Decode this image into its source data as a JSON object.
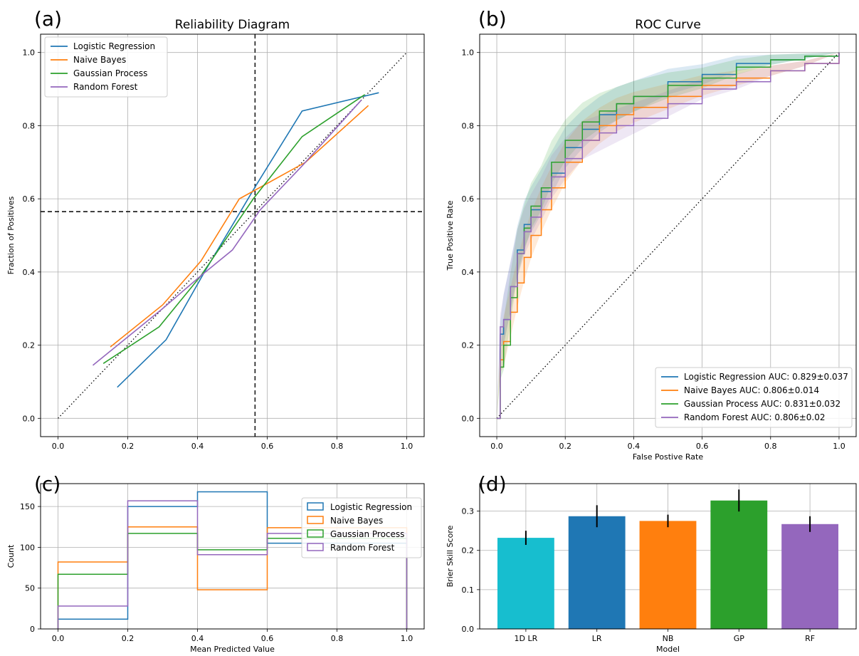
{
  "chart_data": [
    {
      "panel": "(a)",
      "type": "line",
      "title": "Reliability Diagram",
      "xlabel": "",
      "ylabel": "Fraction of Positives",
      "xlim": [
        -0.05,
        1.05
      ],
      "ylim": [
        -0.05,
        1.05
      ],
      "xticks": [
        "0.0",
        "0.2",
        "0.4",
        "0.6",
        "0.8",
        "1.0"
      ],
      "yticks": [
        "0.0",
        "0.2",
        "0.4",
        "0.6",
        "0.8",
        "1.0"
      ],
      "grid": true,
      "legend_position": "top-left",
      "reference_line": {
        "style": "dotted",
        "points": [
          [
            0,
            0
          ],
          [
            1,
            1
          ]
        ]
      },
      "threshold_lines": {
        "style": "dashed",
        "x": 0.565,
        "y": 0.565
      },
      "series": [
        {
          "name": "Logistic Regression",
          "color": "#1f77b4",
          "x": [
            0.17,
            0.31,
            0.42,
            0.57,
            0.7,
            0.92
          ],
          "y": [
            0.085,
            0.215,
            0.4,
            0.64,
            0.84,
            0.89
          ]
        },
        {
          "name": "Naive Bayes",
          "color": "#ff7f0e",
          "x": [
            0.15,
            0.3,
            0.41,
            0.52,
            0.71,
            0.89
          ],
          "y": [
            0.195,
            0.31,
            0.43,
            0.6,
            0.7,
            0.855
          ]
        },
        {
          "name": "Gaussian Process",
          "color": "#2ca02c",
          "x": [
            0.13,
            0.29,
            0.41,
            0.56,
            0.7,
            0.88
          ],
          "y": [
            0.15,
            0.25,
            0.39,
            0.6,
            0.77,
            0.885
          ]
        },
        {
          "name": "Random Forest",
          "color": "#9467bd",
          "x": [
            0.1,
            0.3,
            0.41,
            0.5,
            0.58,
            0.7,
            0.87
          ],
          "y": [
            0.145,
            0.3,
            0.39,
            0.46,
            0.57,
            0.69,
            0.87
          ]
        }
      ]
    },
    {
      "panel": "(b)",
      "type": "line",
      "title": "ROC Curve",
      "xlabel": "False Postive Rate",
      "ylabel": "True Positive Rate",
      "xlim": [
        -0.05,
        1.05
      ],
      "ylim": [
        -0.05,
        1.05
      ],
      "xticks": [
        "0.0",
        "0.2",
        "0.4",
        "0.6",
        "0.8",
        "1.0"
      ],
      "yticks": [
        "0.0",
        "0.2",
        "0.4",
        "0.6",
        "0.8",
        "1.0"
      ],
      "grid": true,
      "legend_position": "bottom-right",
      "reference_line": {
        "style": "dotted",
        "points": [
          [
            0,
            0
          ],
          [
            1,
            1
          ]
        ]
      },
      "series": [
        {
          "name": "Logistic Regression AUC: 0.829±0.037",
          "color": "#1f77b4",
          "x": [
            0,
            0.01,
            0.02,
            0.04,
            0.06,
            0.08,
            0.1,
            0.13,
            0.16,
            0.2,
            0.25,
            0.3,
            0.35,
            0.4,
            0.5,
            0.6,
            0.7,
            0.8,
            0.9,
            1.0
          ],
          "y": [
            0,
            0.23,
            0.27,
            0.36,
            0.46,
            0.53,
            0.57,
            0.62,
            0.67,
            0.74,
            0.79,
            0.83,
            0.86,
            0.88,
            0.92,
            0.94,
            0.97,
            0.98,
            0.99,
            1.0
          ]
        },
        {
          "name": "Naive Bayes AUC: 0.806±0.014",
          "color": "#ff7f0e",
          "x": [
            0,
            0.01,
            0.02,
            0.04,
            0.06,
            0.08,
            0.1,
            0.13,
            0.16,
            0.2,
            0.25,
            0.3,
            0.35,
            0.4,
            0.5,
            0.6,
            0.7,
            0.8,
            0.9,
            1.0
          ],
          "y": [
            0,
            0.16,
            0.21,
            0.29,
            0.37,
            0.44,
            0.5,
            0.57,
            0.63,
            0.7,
            0.76,
            0.8,
            0.83,
            0.85,
            0.88,
            0.91,
            0.93,
            0.95,
            0.97,
            1.0
          ]
        },
        {
          "name": "Gaussian Process AUC: 0.831±0.032",
          "color": "#2ca02c",
          "x": [
            0,
            0.01,
            0.02,
            0.04,
            0.06,
            0.08,
            0.1,
            0.13,
            0.16,
            0.2,
            0.25,
            0.3,
            0.35,
            0.4,
            0.5,
            0.6,
            0.7,
            0.8,
            0.9,
            1.0
          ],
          "y": [
            0,
            0.14,
            0.2,
            0.33,
            0.45,
            0.52,
            0.58,
            0.63,
            0.7,
            0.76,
            0.81,
            0.84,
            0.86,
            0.88,
            0.91,
            0.93,
            0.96,
            0.98,
            0.99,
            1.0
          ]
        },
        {
          "name": "Random Forest AUC: 0.806±0.02",
          "color": "#9467bd",
          "x": [
            0,
            0.01,
            0.02,
            0.04,
            0.06,
            0.08,
            0.1,
            0.13,
            0.16,
            0.2,
            0.25,
            0.3,
            0.35,
            0.4,
            0.5,
            0.6,
            0.7,
            0.8,
            0.9,
            1.0
          ],
          "y": [
            0,
            0.25,
            0.27,
            0.36,
            0.45,
            0.51,
            0.55,
            0.6,
            0.66,
            0.71,
            0.76,
            0.78,
            0.8,
            0.82,
            0.86,
            0.9,
            0.92,
            0.95,
            0.97,
            1.0
          ]
        }
      ]
    },
    {
      "panel": "(c)",
      "type": "bar",
      "subtype": "step-histogram",
      "title": "",
      "xlabel": "Mean Predicted Value",
      "ylabel": "Count",
      "xlim": [
        -0.05,
        1.05
      ],
      "ylim": [
        0,
        178
      ],
      "bin_edges": [
        0.0,
        0.2,
        0.4,
        0.6,
        0.8,
        1.0
      ],
      "xticks": [
        "0.0",
        "0.2",
        "0.4",
        "0.6",
        "0.8",
        "1.0"
      ],
      "yticks": [
        "0",
        "50",
        "100",
        "150"
      ],
      "ytick_values": [
        0,
        50,
        100,
        150
      ],
      "grid": true,
      "legend_position": "top-right",
      "series": [
        {
          "name": "Logistic Regression",
          "color": "#1f77b4",
          "values": [
            12,
            150,
            168,
            105,
            105
          ]
        },
        {
          "name": "Naive Bayes",
          "color": "#ff7f0e",
          "values": [
            82,
            125,
            48,
            124,
            124
          ]
        },
        {
          "name": "Gaussian Process",
          "color": "#2ca02c",
          "values": [
            67,
            117,
            97,
            111,
            111
          ]
        },
        {
          "name": "Random Forest",
          "color": "#9467bd",
          "values": [
            28,
            157,
            91,
            117,
            117
          ]
        }
      ]
    },
    {
      "panel": "(d)",
      "type": "bar",
      "title": "",
      "xlabel": "Model",
      "ylabel": "Brier Skill Score",
      "categories": [
        "1D LR",
        "LR",
        "NB",
        "GP",
        "RF"
      ],
      "values": [
        0.232,
        0.287,
        0.275,
        0.327,
        0.267
      ],
      "errors": [
        0.018,
        0.028,
        0.016,
        0.028,
        0.02
      ],
      "colors": [
        "#17becf",
        "#1f77b4",
        "#ff7f0e",
        "#2ca02c",
        "#9467bd"
      ],
      "ylim": [
        0,
        0.37
      ],
      "yticks": [
        "0.0",
        "0.1",
        "0.2",
        "0.3"
      ],
      "ytick_values": [
        0,
        0.1,
        0.2,
        0.3
      ],
      "grid": true
    }
  ]
}
